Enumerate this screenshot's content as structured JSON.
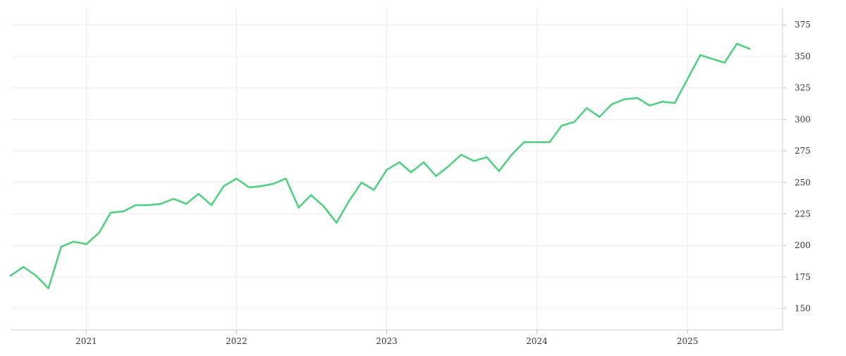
{
  "chart_data": {
    "type": "line",
    "title": "",
    "xlabel": "",
    "ylabel": "",
    "x_tick_labels": [
      "2021",
      "2022",
      "2023",
      "2024",
      "2025"
    ],
    "y_tick_labels": [
      "150",
      "175",
      "200",
      "225",
      "250",
      "275",
      "300",
      "325",
      "350",
      "375"
    ],
    "ylim": [
      133,
      388
    ],
    "xlim": [
      "2020-07-01",
      "2025-08-20"
    ],
    "y_axis_position": "right",
    "grid": true,
    "legend": "none",
    "series": [
      {
        "color": "#4cd07d",
        "points": [
          [
            "2020-07-01",
            176
          ],
          [
            "2020-08-01",
            183
          ],
          [
            "2020-09-01",
            176
          ],
          [
            "2020-10-01",
            166
          ],
          [
            "2020-11-01",
            199
          ],
          [
            "2020-12-01",
            203
          ],
          [
            "2021-01-01",
            201
          ],
          [
            "2021-02-01",
            210
          ],
          [
            "2021-03-01",
            226
          ],
          [
            "2021-04-01",
            227
          ],
          [
            "2021-05-01",
            232
          ],
          [
            "2021-06-01",
            232
          ],
          [
            "2021-07-01",
            233
          ],
          [
            "2021-08-01",
            237
          ],
          [
            "2021-09-01",
            233
          ],
          [
            "2021-10-01",
            241
          ],
          [
            "2021-11-01",
            232
          ],
          [
            "2021-12-01",
            247
          ],
          [
            "2022-01-01",
            253
          ],
          [
            "2022-02-01",
            246
          ],
          [
            "2022-03-01",
            247
          ],
          [
            "2022-04-01",
            249
          ],
          [
            "2022-05-01",
            253
          ],
          [
            "2022-06-01",
            230
          ],
          [
            "2022-07-01",
            240
          ],
          [
            "2022-08-01",
            231
          ],
          [
            "2022-09-01",
            218
          ],
          [
            "2022-10-01",
            235
          ],
          [
            "2022-11-01",
            250
          ],
          [
            "2022-12-01",
            244
          ],
          [
            "2023-01-01",
            260
          ],
          [
            "2023-02-01",
            266
          ],
          [
            "2023-03-01",
            258
          ],
          [
            "2023-04-01",
            266
          ],
          [
            "2023-05-01",
            255
          ],
          [
            "2023-06-01",
            263
          ],
          [
            "2023-07-01",
            272
          ],
          [
            "2023-08-01",
            267
          ],
          [
            "2023-09-01",
            270
          ],
          [
            "2023-10-01",
            259
          ],
          [
            "2023-11-01",
            272
          ],
          [
            "2023-12-01",
            282
          ],
          [
            "2024-01-01",
            282
          ],
          [
            "2024-02-01",
            282
          ],
          [
            "2024-03-01",
            295
          ],
          [
            "2024-04-01",
            298
          ],
          [
            "2024-05-01",
            309
          ],
          [
            "2024-06-01",
            302
          ],
          [
            "2024-07-01",
            312
          ],
          [
            "2024-08-01",
            316
          ],
          [
            "2024-09-01",
            317
          ],
          [
            "2024-10-01",
            311
          ],
          [
            "2024-11-01",
            314
          ],
          [
            "2024-12-01",
            313
          ],
          [
            "2025-02-01",
            351
          ],
          [
            "2025-04-01",
            345
          ],
          [
            "2025-05-01",
            360
          ],
          [
            "2025-06-01",
            356
          ]
        ]
      }
    ]
  }
}
